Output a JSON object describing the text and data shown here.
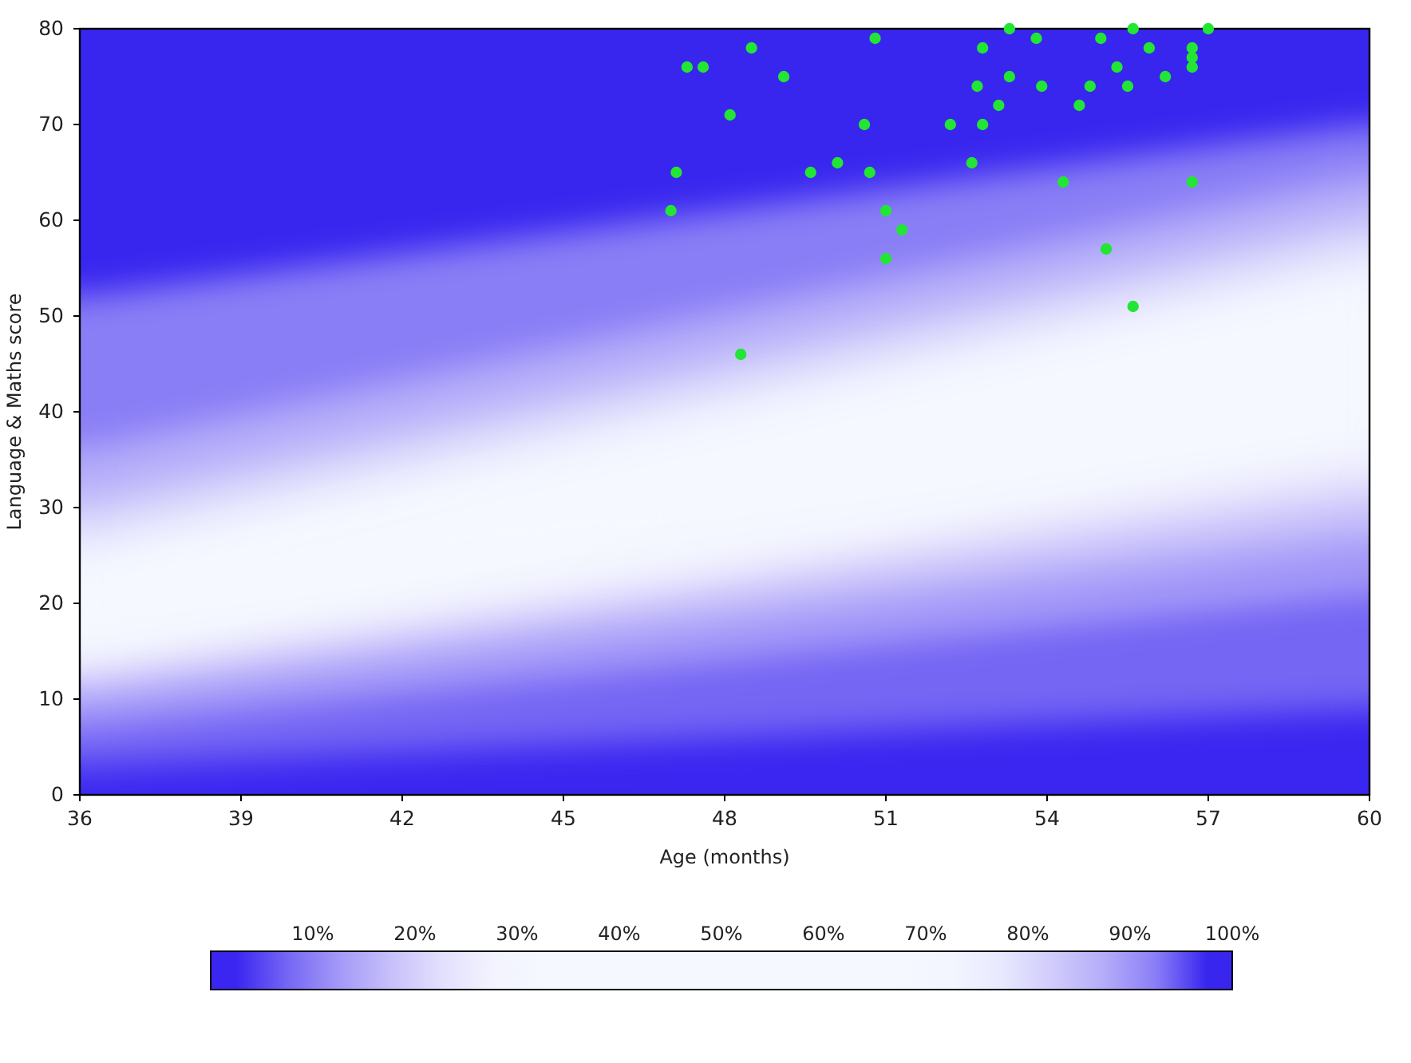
{
  "chart_data": {
    "type": "scatter",
    "xlabel": "Age (months)",
    "ylabel": "Language & Maths score",
    "xlim": [
      36,
      60
    ],
    "ylim": [
      0,
      80
    ],
    "xticks": [
      36,
      39,
      42,
      45,
      48,
      51,
      54,
      57,
      60
    ],
    "yticks": [
      0,
      10,
      20,
      30,
      40,
      50,
      60,
      70,
      80
    ],
    "annotations": [
      "10%",
      "20%",
      "30%",
      "40%",
      "50%",
      "60%",
      "70%",
      "80%",
      "90%",
      "100%"
    ],
    "stacked": true,
    "series": [
      {
        "type": "area",
        "x": [
          36,
          60
        ],
        "values": [
          3,
          9
        ],
        "color": "#3a26f0"
      },
      {
        "type": "area",
        "x": [
          36,
          60
        ],
        "values": [
          4,
          12
        ],
        "color": "#7566f4"
      },
      {
        "type": "area",
        "x": [
          36,
          60
        ],
        "values": [
          3,
          6
        ],
        "color": "#a398f8"
      },
      {
        "type": "area",
        "x": [
          36,
          60
        ],
        "values": [
          2,
          4
        ],
        "color": "#c6bffa"
      },
      {
        "type": "area",
        "x": [
          36,
          60
        ],
        "values": [
          1,
          3
        ],
        "color": "#e2dffd"
      },
      {
        "type": "area",
        "x": [
          36,
          60
        ],
        "values": [
          2,
          3
        ],
        "color": "#f2f3fe"
      },
      {
        "type": "area",
        "x": [
          36,
          60
        ],
        "values": [
          1,
          2
        ],
        "color": "#f5f8ff"
      },
      {
        "type": "area",
        "x": [
          36,
          60
        ],
        "values": [
          1,
          2
        ],
        "color": "#f5f8ff"
      },
      {
        "type": "area",
        "x": [
          36,
          60
        ],
        "values": [
          1,
          2
        ],
        "color": "#f5f8ff"
      },
      {
        "type": "area",
        "x": [
          36,
          60
        ],
        "values": [
          1,
          2
        ],
        "color": "#f5f8ff"
      },
      {
        "type": "area",
        "x": [
          36,
          60
        ],
        "values": [
          1,
          2
        ],
        "color": "#f5f8ff"
      },
      {
        "type": "area",
        "x": [
          36,
          60
        ],
        "values": [
          2,
          2
        ],
        "color": "#f5f8ff"
      },
      {
        "type": "area",
        "x": [
          36,
          60
        ],
        "values": [
          1,
          2
        ],
        "color": "#f5f8ff"
      },
      {
        "type": "area",
        "x": [
          36,
          60
        ],
        "values": [
          1,
          2
        ],
        "color": "#f5f8ff"
      },
      {
        "type": "area",
        "x": [
          36,
          60
        ],
        "values": [
          1,
          2
        ],
        "color": "#f3f5ff"
      },
      {
        "type": "area",
        "x": [
          36,
          60
        ],
        "values": [
          3,
          3
        ],
        "color": "#e8e8fe"
      },
      {
        "type": "area",
        "x": [
          36,
          60
        ],
        "values": [
          3,
          3
        ],
        "color": "#d0cbfb"
      },
      {
        "type": "area",
        "x": [
          36,
          60
        ],
        "values": [
          5,
          4
        ],
        "color": "#b4acf9"
      },
      {
        "type": "area",
        "x": [
          36,
          60
        ],
        "values": [
          16,
          5
        ],
        "color": "#8a7ef6"
      },
      {
        "type": "area",
        "x": [
          36,
          60
        ],
        "values": [
          28,
          10
        ],
        "color": "#3826ef"
      },
      {
        "color": "#22e633",
        "marker": "circle",
        "x": [
          47.0,
          47.1,
          47.3,
          47.6,
          48.1,
          48.3,
          48.5,
          49.1,
          49.6,
          50.1,
          50.6,
          50.7,
          50.8,
          51.0,
          51.0,
          51.3,
          52.2,
          52.6,
          52.7,
          52.8,
          52.8,
          53.1,
          53.3,
          53.3,
          53.8,
          53.9,
          54.3,
          54.6,
          54.8,
          55.0,
          55.1,
          55.3,
          55.5,
          55.6,
          55.6,
          55.9,
          56.2,
          56.7,
          56.7,
          56.7,
          56.7,
          57.0
        ],
        "values": [
          61,
          65,
          76,
          76,
          71,
          46,
          78,
          75,
          65,
          66,
          70,
          65,
          79,
          61,
          56,
          59,
          70,
          66,
          74,
          78,
          70,
          72,
          80,
          75,
          79,
          74,
          64,
          72,
          74,
          79,
          57,
          76,
          74,
          80,
          51,
          78,
          75,
          77,
          76,
          64,
          78,
          80
        ]
      }
    ]
  }
}
